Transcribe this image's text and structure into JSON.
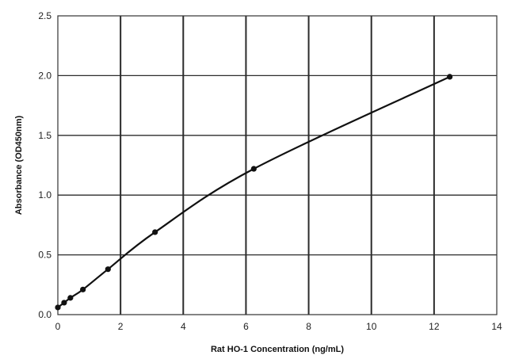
{
  "chart_data": {
    "type": "line",
    "title": "",
    "xlabel": "Rat HO-1 Concentration (ng/mL)",
    "ylabel": "Absorbance (OD450nm)",
    "xlim": [
      0,
      14
    ],
    "ylim": [
      0,
      2.5
    ],
    "x_ticks": [
      "0",
      "2",
      "4",
      "6",
      "8",
      "10",
      "12",
      "14"
    ],
    "y_ticks": [
      "0.0",
      "0.5",
      "1.0",
      "1.5",
      "2.0",
      "2.5"
    ],
    "grid": true,
    "series": [
      {
        "x": [
          0,
          0.2,
          0.4,
          0.8,
          1.6,
          3.1,
          6.25,
          12.5
        ],
        "y": [
          0.06,
          0.1,
          0.14,
          0.21,
          0.38,
          0.69,
          1.22,
          1.99
        ]
      }
    ],
    "colors": {
      "line": "#111111",
      "grid": "#2b2b2b",
      "frame": "#333333"
    }
  }
}
